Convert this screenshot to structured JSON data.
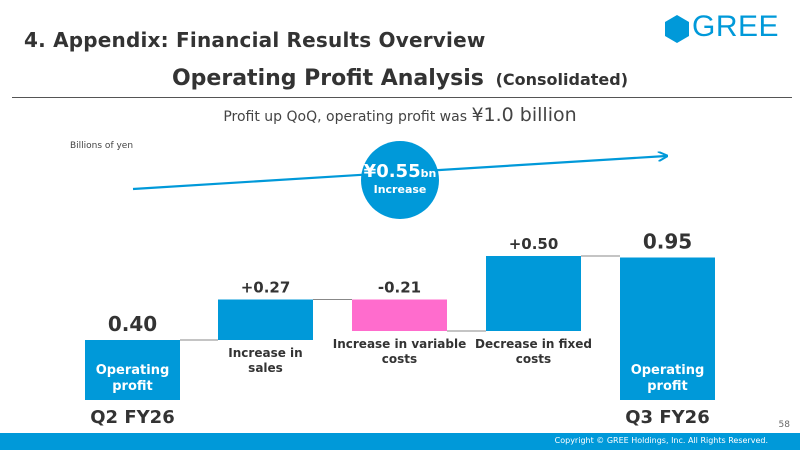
{
  "header": {
    "section_title": "4. Appendix: Financial Results Overview",
    "logo_text": "GREE",
    "logo_color": "#0099d9"
  },
  "slide": {
    "title": "Operating Profit Analysis",
    "subtitle": "(Consolidated)",
    "headline_prefix": "Profit up QoQ, operating profit was",
    "headline_amount": "¥1.0 billion",
    "unit_note": "Billions of yen"
  },
  "badge": {
    "value": "¥0.55",
    "unit": "bn",
    "label": "Increase"
  },
  "chart_data": {
    "type": "bar",
    "subtype": "waterfall",
    "categories": [
      "Q2 FY26",
      "Increase in sales",
      "Increase in variable costs",
      "Decrease in fixed costs",
      "Q3 FY26"
    ],
    "category_labels": [
      "Q2 FY26",
      "",
      "",
      "",
      "Q3 FY26"
    ],
    "bar_labels": [
      "Operating profit",
      "Increase in sales",
      "Increase in variable costs",
      "Decrease in fixed costs",
      "Operating profit"
    ],
    "values": [
      0.4,
      0.27,
      -0.21,
      0.5,
      0.95
    ],
    "kinds": [
      "total",
      "delta",
      "delta",
      "delta",
      "total"
    ],
    "data_labels": [
      "0.40",
      "+0.27",
      "-0.21",
      "+0.50",
      "0.95"
    ],
    "colors": {
      "positive": "#0099d9",
      "negative": "#ff6ccd",
      "total": "#0099d9"
    },
    "label_inside": [
      true,
      false,
      false,
      false,
      true
    ],
    "ylim": [
      -0.3,
      1.0
    ],
    "grid": false,
    "legend": "none"
  },
  "footer": {
    "copyright": "Copyright © GREE Holdings, Inc. All Rights Reserved.",
    "page": "58",
    "bar_color": "#0099d9"
  }
}
